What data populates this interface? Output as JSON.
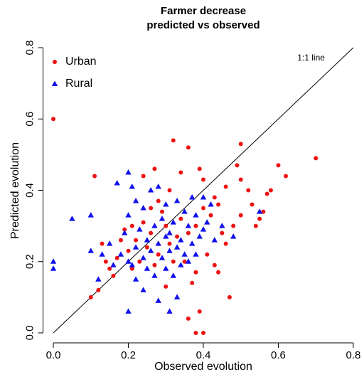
{
  "chart_data": {
    "type": "scatter",
    "title": [
      "Farmer decrease",
      "predicted vs observed"
    ],
    "xlabel": "Observed evolution",
    "ylabel": "Predicted evolution",
    "annotations": [
      "1:1 line"
    ],
    "identity_line": true,
    "legend": "top-left",
    "xlim": [
      -0.02,
      0.82
    ],
    "ylim": [
      -0.02,
      0.82
    ],
    "xticks": [
      {
        "value": 0,
        "label": "0.0"
      },
      0.2,
      0.4,
      0.6,
      0.8
    ],
    "yticks": [
      {
        "value": 0,
        "label": "0.0"
      },
      0.2,
      0.4,
      0.6,
      0.8
    ],
    "series": [
      {
        "name": "Urban",
        "color": "#ee1111",
        "marker": "circle",
        "x": [
          0,
          0.11,
          0.1,
          0.12,
          0.32,
          0.36,
          0.5,
          0.7,
          0.6,
          0.62,
          0.57,
          0.58,
          0.38,
          0.4,
          0.39,
          0.36,
          0.47,
          0.38,
          0.55,
          0.54,
          0.56,
          0.53,
          0.5,
          0.48,
          0.45,
          0.43,
          0.46,
          0.44,
          0.42,
          0.4,
          0.38,
          0.36,
          0.34,
          0.33,
          0.31,
          0.3,
          0.29,
          0.28,
          0.27,
          0.26,
          0.25,
          0.24,
          0.23,
          0.22,
          0.21,
          0.2,
          0.19,
          0.17,
          0.16,
          0.15,
          0.14,
          0.13,
          0.24,
          0.27,
          0.34,
          0.39,
          0.4,
          0.49,
          0.5,
          0.52,
          0.35,
          0.41,
          0.44,
          0.37,
          0.3,
          0.32,
          0.28,
          0.31,
          0.26,
          0.21,
          0.18,
          0.46,
          0.43
        ],
        "y": [
          0.6,
          0.44,
          0.1,
          0.12,
          0.54,
          0.52,
          0.53,
          0.49,
          0.47,
          0.44,
          0.39,
          0.4,
          0,
          0,
          0.06,
          0.04,
          0.1,
          0.17,
          0.32,
          0.3,
          0.34,
          0.36,
          0.33,
          0.3,
          0.28,
          0.38,
          0.41,
          0.36,
          0.33,
          0.35,
          0.3,
          0.28,
          0.32,
          0.27,
          0.25,
          0.3,
          0.34,
          0.22,
          0.19,
          0.28,
          0.24,
          0.31,
          0.2,
          0.26,
          0.18,
          0.23,
          0.29,
          0.21,
          0.16,
          0.18,
          0.2,
          0.25,
          0.44,
          0.46,
          0.45,
          0.46,
          0.43,
          0.47,
          0.43,
          0.4,
          0.2,
          0.22,
          0.17,
          0.14,
          0.13,
          0.2,
          0.37,
          0.4,
          0.35,
          0.3,
          0.26,
          0.25,
          0.19
        ]
      },
      {
        "name": "Rural",
        "color": "#1111ee",
        "marker": "triangle",
        "x": [
          0,
          0,
          0.05,
          0.1,
          0.1,
          0.13,
          0.15,
          0.17,
          0.2,
          0.21,
          0.22,
          0.2,
          0.19,
          0.18,
          0.2,
          0.22,
          0.24,
          0.28,
          0.2,
          0.31,
          0.33,
          0.25,
          0.26,
          0.27,
          0.28,
          0.29,
          0.3,
          0.31,
          0.32,
          0.33,
          0.34,
          0.35,
          0.36,
          0.37,
          0.38,
          0.39,
          0.4,
          0.41,
          0.42,
          0.43,
          0.45,
          0.24,
          0.23,
          0.25,
          0.27,
          0.3,
          0.32,
          0.34,
          0.36,
          0.26,
          0.28,
          0.3,
          0.33,
          0.35,
          0.37,
          0.4,
          0.22,
          0.24,
          0.21,
          0.29,
          0.31,
          0.38,
          0.55,
          0.48,
          0.12,
          0.16
        ],
        "y": [
          0.2,
          0.18,
          0.32,
          0.33,
          0.23,
          0.22,
          0.25,
          0.42,
          0.45,
          0.41,
          0.37,
          0.33,
          0.28,
          0.22,
          0.2,
          0.15,
          0.12,
          0.09,
          0.06,
          0.06,
          0.1,
          0.26,
          0.23,
          0.3,
          0.25,
          0.21,
          0.27,
          0.23,
          0.31,
          0.24,
          0.26,
          0.22,
          0.3,
          0.25,
          0.33,
          0.27,
          0.29,
          0.31,
          0.36,
          0.26,
          0.3,
          0.35,
          0.29,
          0.18,
          0.16,
          0.18,
          0.16,
          0.19,
          0.2,
          0.4,
          0.41,
          0.36,
          0.37,
          0.34,
          0.38,
          0.38,
          0.24,
          0.21,
          0.19,
          0.32,
          0.28,
          0.22,
          0.34,
          0.27,
          0.15,
          0.19
        ]
      }
    ]
  }
}
